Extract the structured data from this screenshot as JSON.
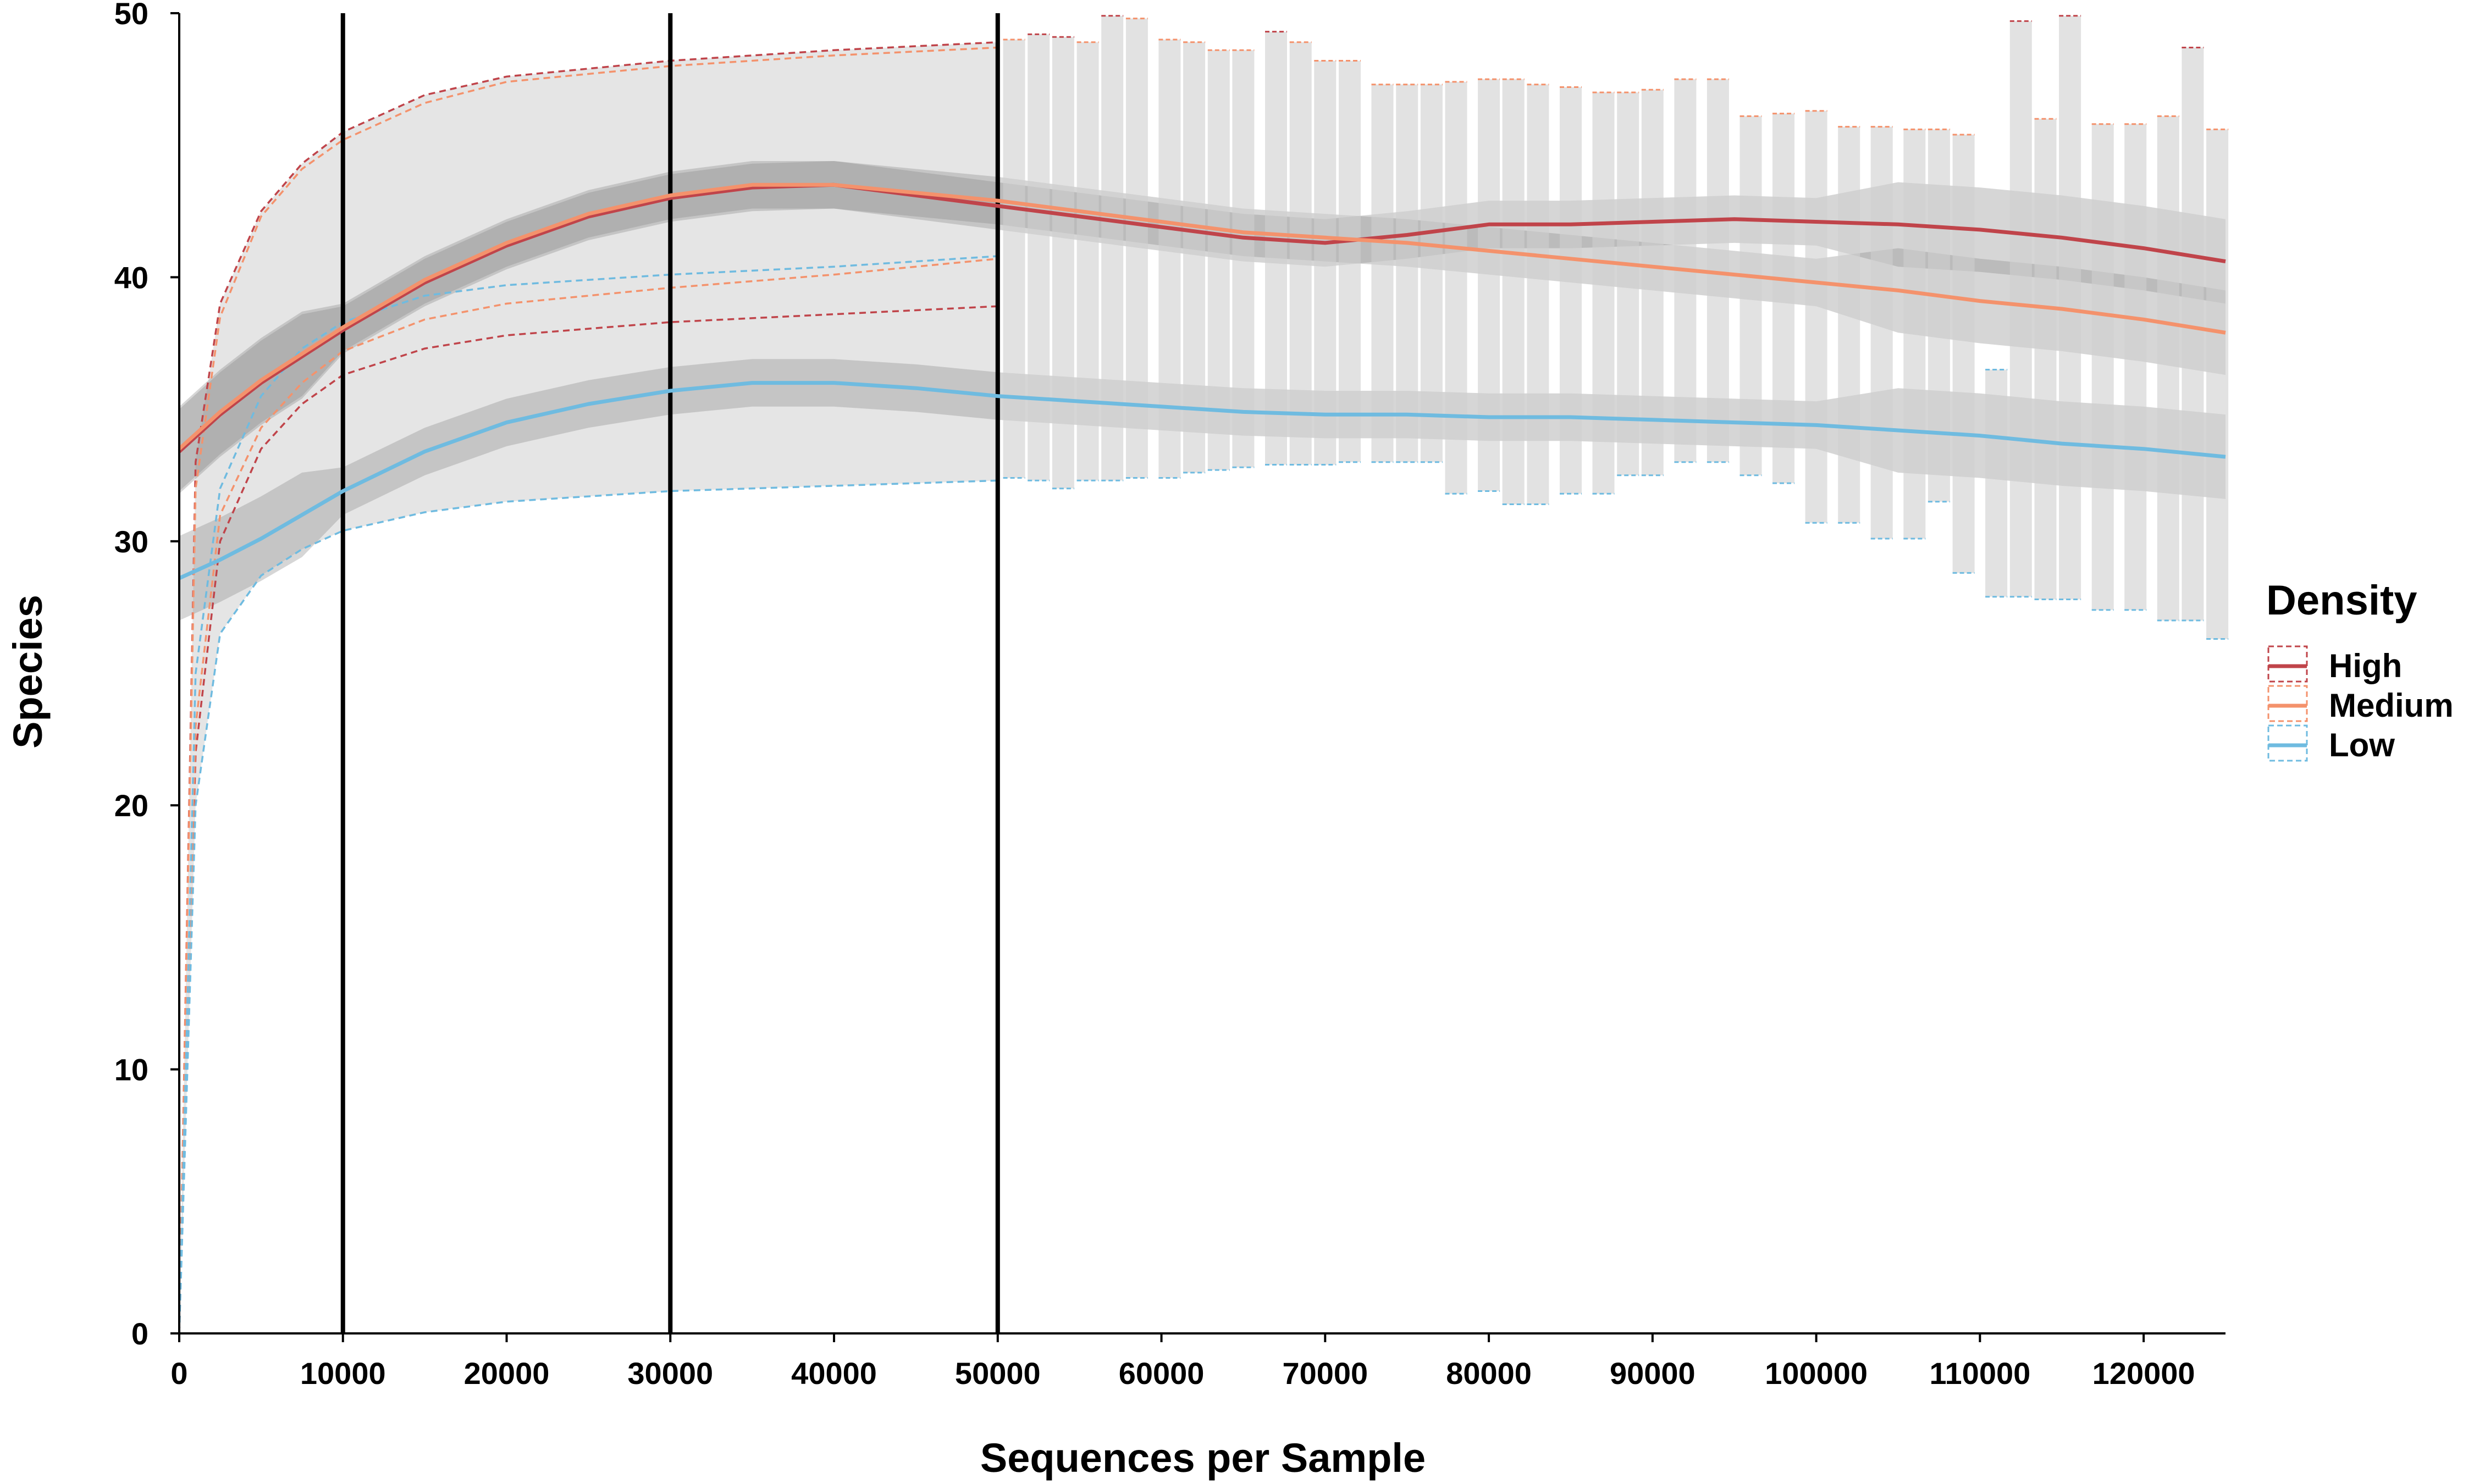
{
  "chart_data": {
    "type": "line",
    "title": "",
    "xlabel": "Sequences per Sample",
    "ylabel": "Species",
    "xlim": [
      0,
      125000
    ],
    "ylim": [
      0,
      50
    ],
    "x_ticks": [
      0,
      10000,
      20000,
      30000,
      40000,
      50000,
      60000,
      70000,
      80000,
      90000,
      100000,
      110000,
      120000
    ],
    "x_tick_labels": [
      "0",
      "10000",
      "20000",
      "30000",
      "40000",
      "50000",
      "60000",
      "70000",
      "80000",
      "90000",
      "100000",
      "110000",
      "120000"
    ],
    "y_ticks": [
      0,
      10,
      20,
      30,
      40,
      50
    ],
    "y_tick_labels": [
      "0",
      "10",
      "20",
      "30",
      "40",
      "50"
    ],
    "vertical_lines": [
      10000,
      30000,
      50000
    ],
    "grid": false,
    "legend": {
      "title": "Density",
      "position": "right",
      "entries": [
        {
          "label": "High",
          "color": "#C0444A"
        },
        {
          "label": "Medium",
          "color": "#F4926C"
        },
        {
          "label": "Low",
          "color": "#6FBBE0"
        }
      ]
    },
    "series": [
      {
        "name": "High",
        "color": "#C0444A",
        "smooth": {
          "x": [
            0,
            2500,
            5000,
            7500,
            10000,
            15000,
            20000,
            25000,
            30000,
            35000,
            40000,
            45000,
            50000,
            55000,
            60000,
            65000,
            70000,
            75000,
            80000,
            85000,
            90000,
            95000,
            100000,
            105000,
            110000,
            115000,
            120000,
            125000
          ],
          "y": [
            33.4,
            34.8,
            36.0,
            37.0,
            38.0,
            39.8,
            41.2,
            42.3,
            43.0,
            43.4,
            43.5,
            43.1,
            42.7,
            42.3,
            41.9,
            41.5,
            41.3,
            41.6,
            42.0,
            42.0,
            42.1,
            42.2,
            42.1,
            42.0,
            41.8,
            41.5,
            41.1,
            40.6
          ]
        },
        "upper": {
          "x": [
            0,
            1000,
            2500,
            5000,
            7500,
            10000,
            15000,
            20000,
            30000,
            40000,
            50000
          ],
          "y": [
            0,
            33,
            39,
            42.5,
            44.3,
            45.5,
            46.9,
            47.6,
            48.2,
            48.6,
            48.9
          ]
        },
        "lower": {
          "x": [
            0,
            1000,
            2500,
            5000,
            7500,
            10000,
            15000,
            20000,
            30000,
            40000,
            50000
          ],
          "y": [
            0,
            22,
            30,
            33.5,
            35.2,
            36.3,
            37.3,
            37.8,
            38.3,
            38.6,
            38.9
          ]
        }
      },
      {
        "name": "Medium",
        "color": "#F4926C",
        "smooth": {
          "x": [
            0,
            2500,
            5000,
            7500,
            10000,
            15000,
            20000,
            25000,
            30000,
            35000,
            40000,
            45000,
            50000,
            55000,
            60000,
            65000,
            70000,
            75000,
            80000,
            85000,
            90000,
            95000,
            100000,
            105000,
            110000,
            115000,
            120000,
            125000
          ],
          "y": [
            33.5,
            34.9,
            36.1,
            37.1,
            38.1,
            39.9,
            41.3,
            42.4,
            43.1,
            43.5,
            43.5,
            43.2,
            42.9,
            42.5,
            42.1,
            41.7,
            41.5,
            41.3,
            41.0,
            40.7,
            40.4,
            40.1,
            39.8,
            39.5,
            39.1,
            38.8,
            38.4,
            37.9
          ]
        },
        "upper": {
          "x": [
            0,
            1000,
            2500,
            5000,
            7500,
            10000,
            15000,
            20000,
            30000,
            40000,
            50000
          ],
          "y": [
            0,
            32,
            38.5,
            42.3,
            44.1,
            45.2,
            46.6,
            47.4,
            48.0,
            48.4,
            48.7
          ]
        },
        "lower": {
          "x": [
            0,
            1000,
            2500,
            5000,
            7500,
            10000,
            15000,
            20000,
            30000,
            40000,
            50000
          ],
          "y": [
            0,
            23,
            31,
            34.3,
            36.0,
            37.2,
            38.4,
            39.0,
            39.6,
            40.1,
            40.7
          ]
        }
      },
      {
        "name": "Low",
        "color": "#6FBBE0",
        "smooth": {
          "x": [
            0,
            2500,
            5000,
            7500,
            10000,
            15000,
            20000,
            25000,
            30000,
            35000,
            40000,
            45000,
            50000,
            55000,
            60000,
            65000,
            70000,
            75000,
            80000,
            85000,
            90000,
            95000,
            100000,
            105000,
            110000,
            115000,
            120000,
            125000
          ],
          "y": [
            28.6,
            29.3,
            30.1,
            31.0,
            31.9,
            33.4,
            34.5,
            35.2,
            35.7,
            36.0,
            36.0,
            35.8,
            35.5,
            35.3,
            35.1,
            34.9,
            34.8,
            34.8,
            34.7,
            34.7,
            34.6,
            34.5,
            34.4,
            34.2,
            34.0,
            33.7,
            33.5,
            33.2
          ]
        },
        "upper": {
          "x": [
            0,
            1000,
            2500,
            5000,
            7500,
            10000,
            15000,
            20000,
            30000,
            40000,
            50000
          ],
          "y": [
            0,
            25,
            32,
            35.5,
            37.3,
            38.3,
            39.3,
            39.7,
            40.1,
            40.4,
            40.8
          ]
        },
        "lower": {
          "x": [
            0,
            1000,
            2500,
            5000,
            7500,
            10000,
            15000,
            20000,
            30000,
            40000,
            50000
          ],
          "y": [
            0,
            20,
            26.5,
            28.7,
            29.7,
            30.4,
            31.1,
            31.5,
            31.9,
            32.1,
            32.3
          ]
        }
      }
    ],
    "error_bars_after_50000": [
      {
        "x": 51000,
        "hi": 49.0,
        "lo": 32.4,
        "series": "Medium"
      },
      {
        "x": 52500,
        "hi": 49.2,
        "lo": 32.3,
        "series": "High"
      },
      {
        "x": 54000,
        "hi": 49.1,
        "lo": 32.0,
        "series": "High"
      },
      {
        "x": 55500,
        "hi": 48.9,
        "lo": 32.3,
        "series": "Medium"
      },
      {
        "x": 57000,
        "hi": 49.9,
        "lo": 32.3,
        "series": "High"
      },
      {
        "x": 58500,
        "hi": 49.8,
        "lo": 32.4,
        "series": "Medium"
      },
      {
        "x": 60500,
        "hi": 49.0,
        "lo": 32.4,
        "series": "Medium"
      },
      {
        "x": 62000,
        "hi": 48.9,
        "lo": 32.6,
        "series": "Medium"
      },
      {
        "x": 63500,
        "hi": 48.6,
        "lo": 32.7,
        "series": "Medium"
      },
      {
        "x": 65000,
        "hi": 48.6,
        "lo": 32.8,
        "series": "Medium"
      },
      {
        "x": 67000,
        "hi": 49.3,
        "lo": 32.9,
        "series": "High"
      },
      {
        "x": 68500,
        "hi": 48.9,
        "lo": 32.9,
        "series": "Medium"
      },
      {
        "x": 70000,
        "hi": 48.2,
        "lo": 32.9,
        "series": "Medium"
      },
      {
        "x": 71500,
        "hi": 48.2,
        "lo": 33.0,
        "series": "Medium"
      },
      {
        "x": 73500,
        "hi": 47.3,
        "lo": 33.0,
        "series": "Medium"
      },
      {
        "x": 75000,
        "hi": 47.3,
        "lo": 33.0,
        "series": "Medium"
      },
      {
        "x": 76500,
        "hi": 47.3,
        "lo": 33.0,
        "series": "Medium"
      },
      {
        "x": 78000,
        "hi": 47.4,
        "lo": 31.8,
        "series": "Medium"
      },
      {
        "x": 80000,
        "hi": 47.5,
        "lo": 31.9,
        "series": "Medium"
      },
      {
        "x": 81500,
        "hi": 47.5,
        "lo": 31.4,
        "series": "Medium"
      },
      {
        "x": 83000,
        "hi": 47.3,
        "lo": 31.4,
        "series": "Medium"
      },
      {
        "x": 85000,
        "hi": 47.2,
        "lo": 31.8,
        "series": "Medium"
      },
      {
        "x": 87000,
        "hi": 47.0,
        "lo": 31.8,
        "series": "Medium"
      },
      {
        "x": 88500,
        "hi": 47.0,
        "lo": 32.5,
        "series": "Medium"
      },
      {
        "x": 90000,
        "hi": 47.1,
        "lo": 32.5,
        "series": "Medium"
      },
      {
        "x": 92000,
        "hi": 47.5,
        "lo": 33.0,
        "series": "Medium"
      },
      {
        "x": 94000,
        "hi": 47.5,
        "lo": 33.0,
        "series": "Medium"
      },
      {
        "x": 96000,
        "hi": 46.1,
        "lo": 32.5,
        "series": "Medium"
      },
      {
        "x": 98000,
        "hi": 46.2,
        "lo": 32.2,
        "series": "Medium"
      },
      {
        "x": 100000,
        "hi": 46.3,
        "lo": 30.7,
        "series": "Medium"
      },
      {
        "x": 102000,
        "hi": 45.7,
        "lo": 30.7,
        "series": "Medium"
      },
      {
        "x": 104000,
        "hi": 45.7,
        "lo": 30.1,
        "series": "Medium"
      },
      {
        "x": 106000,
        "hi": 45.6,
        "lo": 30.1,
        "series": "Medium"
      },
      {
        "x": 107500,
        "hi": 45.6,
        "lo": 31.5,
        "series": "Medium"
      },
      {
        "x": 109000,
        "hi": 45.4,
        "lo": 28.8,
        "series": "Medium"
      },
      {
        "x": 111000,
        "hi": 36.5,
        "lo": 27.9,
        "series": "Low"
      },
      {
        "x": 112500,
        "hi": 49.7,
        "lo": 27.9,
        "series": "High"
      },
      {
        "x": 114000,
        "hi": 46.0,
        "lo": 27.8,
        "series": "Medium"
      },
      {
        "x": 115500,
        "hi": 49.9,
        "lo": 27.8,
        "series": "High"
      },
      {
        "x": 117500,
        "hi": 45.8,
        "lo": 27.4,
        "series": "Medium"
      },
      {
        "x": 119500,
        "hi": 45.8,
        "lo": 27.4,
        "series": "Medium"
      },
      {
        "x": 121500,
        "hi": 46.1,
        "lo": 27.0,
        "series": "Medium"
      },
      {
        "x": 123000,
        "hi": 48.7,
        "lo": 27.0,
        "series": "High"
      },
      {
        "x": 124500,
        "hi": 45.6,
        "lo": 26.3,
        "series": "Medium"
      }
    ]
  }
}
